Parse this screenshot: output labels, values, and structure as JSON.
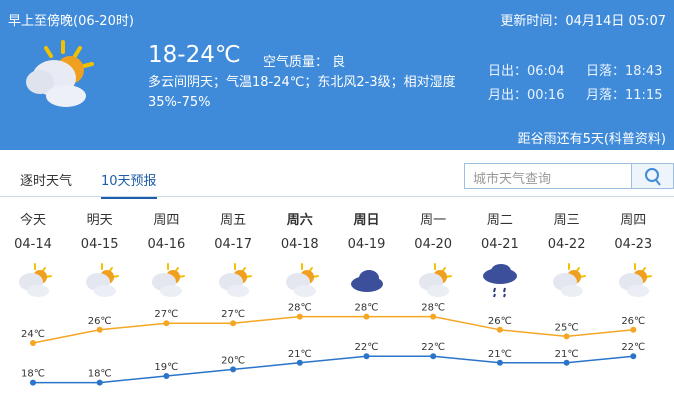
{
  "header": {
    "period": "早上至傍晚(06-20时)",
    "update_time": "更新时间：04月14日 05:07",
    "temperature": "18-24℃",
    "air_quality": "空气质量： 良",
    "description": "多云间阴天；气温18-24℃；东北风2-3级；相对湿度35%-75%",
    "sunrise": "日出：06:04",
    "sunset": "日落：18:43",
    "moonrise": "月出：00:16",
    "moonset": "月落：11:15",
    "solar_term": "距谷雨还有5天(科普资料)",
    "icon": "partly-cloudy-icon"
  },
  "tabs": [
    {
      "label": "逐时天气",
      "active": false
    },
    {
      "label": "10天预报",
      "active": true
    }
  ],
  "search": {
    "placeholder": "城市天气查询",
    "icon": "search-icon"
  },
  "forecast": [
    {
      "day": "今天",
      "date": "04-14",
      "icon": "partly-cloudy",
      "high": "24℃",
      "low": "18℃",
      "bold": false
    },
    {
      "day": "明天",
      "date": "04-15",
      "icon": "partly-cloudy",
      "high": "26℃",
      "low": "18℃",
      "bold": false
    },
    {
      "day": "周四",
      "date": "04-16",
      "icon": "partly-cloudy",
      "high": "27℃",
      "low": "19℃",
      "bold": false
    },
    {
      "day": "周五",
      "date": "04-17",
      "icon": "partly-cloudy",
      "high": "27℃",
      "low": "20℃",
      "bold": false
    },
    {
      "day": "周六",
      "date": "04-18",
      "icon": "partly-cloudy",
      "high": "28℃",
      "low": "21℃",
      "bold": true
    },
    {
      "day": "周日",
      "date": "04-19",
      "icon": "overcast",
      "high": "28℃",
      "low": "22℃",
      "bold": true
    },
    {
      "day": "周一",
      "date": "04-20",
      "icon": "partly-cloudy",
      "high": "28℃",
      "low": "22℃",
      "bold": false
    },
    {
      "day": "周二",
      "date": "04-21",
      "icon": "rain",
      "high": "26℃",
      "low": "21℃",
      "bold": false
    },
    {
      "day": "周三",
      "date": "04-22",
      "icon": "partly-cloudy",
      "high": "25℃",
      "low": "21℃",
      "bold": false
    },
    {
      "day": "周四",
      "date": "04-23",
      "icon": "partly-cloudy",
      "high": "26℃",
      "low": "22℃",
      "bold": false
    }
  ],
  "colors": {
    "header_bg": "#3f8bd9",
    "high_line": "#f5a623",
    "low_line": "#2a74c9"
  }
}
